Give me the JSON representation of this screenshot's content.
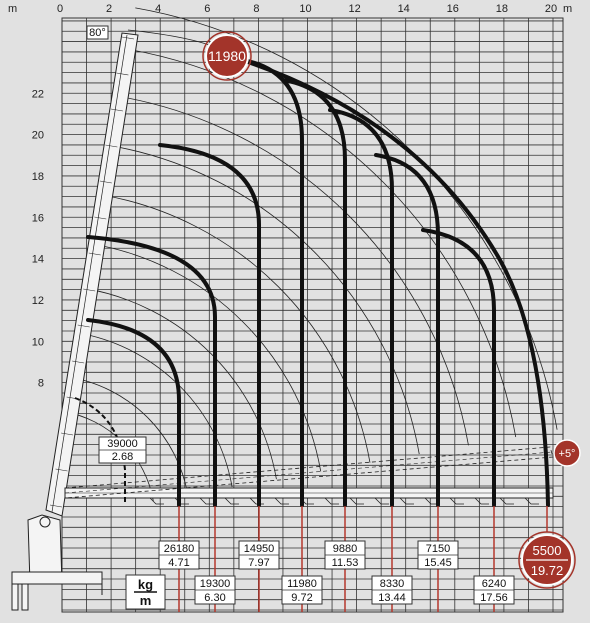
{
  "chart_data": {
    "type": "diagram",
    "axis_unit": "m",
    "x_ticks": [
      "0",
      "2",
      "4",
      "6",
      "8",
      "10",
      "12",
      "14",
      "16",
      "18",
      "20"
    ],
    "y_ticks": [
      "8",
      "10",
      "12",
      "14",
      "16",
      "18",
      "20",
      "22"
    ],
    "xlim": [
      0,
      20
    ],
    "ylim": [
      0,
      24
    ],
    "boom_angle": "80°",
    "max_height_capacity": "11980",
    "extension_angle": "+5°",
    "max_reach": {
      "kg": "5500",
      "m": "19.72"
    },
    "unit_label_top": "kg",
    "unit_label_bottom": "m",
    "inner_label": {
      "kg": "39000",
      "m": "2.68"
    },
    "capacities": [
      {
        "kg": "26180",
        "m": "4.71",
        "row": "top"
      },
      {
        "kg": "19300",
        "m": "6.30",
        "row": "bottom"
      },
      {
        "kg": "14950",
        "m": "7.97",
        "row": "top"
      },
      {
        "kg": "11980",
        "m": "9.72",
        "row": "bottom"
      },
      {
        "kg": "9880",
        "m": "11.53",
        "row": "top"
      },
      {
        "kg": "8330",
        "m": "13.44",
        "row": "bottom"
      },
      {
        "kg": "7150",
        "m": "15.45",
        "row": "top"
      },
      {
        "kg": "6240",
        "m": "17.56",
        "row": "bottom"
      }
    ],
    "colors": {
      "background": "#e1e1e1",
      "grid": "#333333",
      "curve": "#111111",
      "marker": "#b5372c",
      "badge": "#a3342a"
    },
    "grid": true
  }
}
